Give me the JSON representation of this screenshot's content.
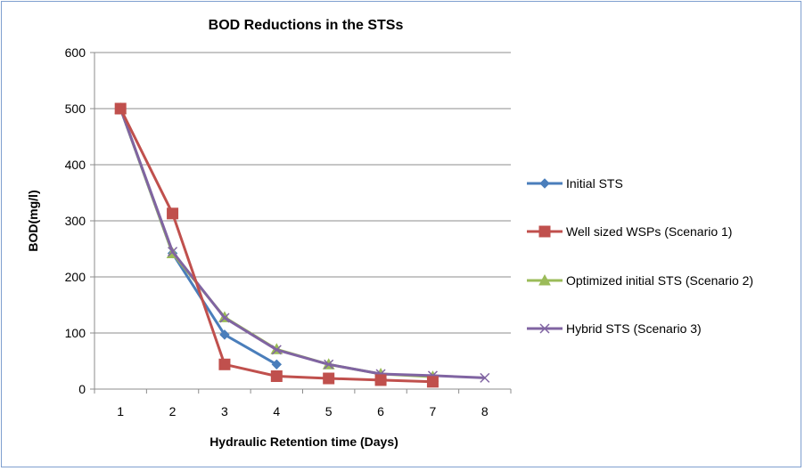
{
  "chart_data": {
    "type": "line",
    "title": "BOD Reductions in the STSs",
    "xlabel": "Hydraulic Retention time (Days)",
    "ylabel": "BOD(mg/l)",
    "categories": [
      "1",
      "2",
      "3",
      "4",
      "5",
      "6",
      "7",
      "8"
    ],
    "ylim": [
      0,
      600
    ],
    "yticks": [
      0,
      100,
      200,
      300,
      400,
      500,
      600
    ],
    "grid": "horizontal",
    "legend_position": "right",
    "series": [
      {
        "name": "Initial STS",
        "color": "#4a7ebb",
        "marker": "diamond",
        "values": [
          500,
          242,
          97,
          44,
          null,
          null,
          null,
          null
        ]
      },
      {
        "name": "Well sized WSPs (Scenario 1)",
        "color": "#c0504d",
        "marker": "square",
        "values": [
          500,
          313,
          44,
          23,
          19,
          16,
          13,
          null
        ]
      },
      {
        "name": "Optimized initial STS (Scenario 2)",
        "color": "#9bbb59",
        "marker": "triangle",
        "values": [
          500,
          242,
          128,
          71,
          44,
          27,
          22,
          null
        ]
      },
      {
        "name": "Hybrid STS (Scenario 3)",
        "color": "#8064a2",
        "marker": "x",
        "values": [
          500,
          245,
          127,
          70,
          44,
          27,
          24,
          20
        ]
      }
    ]
  }
}
